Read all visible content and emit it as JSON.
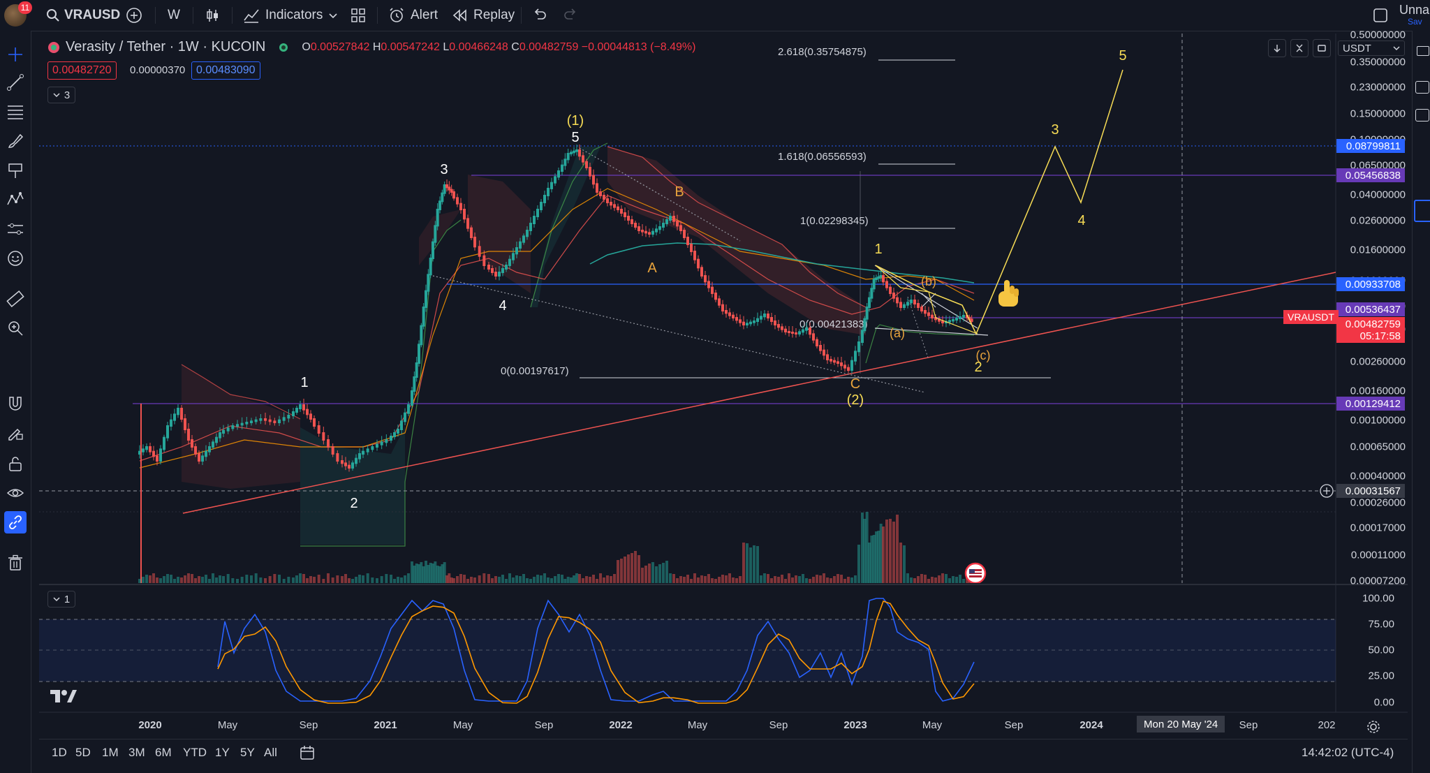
{
  "topbar": {
    "notification_count": "11",
    "symbol": "VRAUSD",
    "interval": "W",
    "indicators_label": "Indicators",
    "alert_label": "Alert",
    "replay_label": "Replay",
    "layout_name": "Unna",
    "save_hint": "Sav"
  },
  "legend": {
    "title": "Verasity / Tether · 1W · KUCOIN",
    "o_label": "O",
    "o_value": "0.00527842",
    "h_label": "H",
    "h_value": "0.00547242",
    "l_label": "L",
    "l_value": "0.00466248",
    "c_label": "C",
    "c_value": "0.00482759",
    "change": "−0.00044813 (−8.49%)",
    "sell_price": "0.00482720",
    "spread": "0.00000370",
    "buy_price": "0.00483090",
    "indicators_count": "3",
    "osc_count": "1"
  },
  "currency": "USDT",
  "price_scale": [
    "0.50000000",
    "0.35000000",
    "0.23000000",
    "0.15000000",
    "0.10000000",
    "0.06500000",
    "0.04000000",
    "0.02600000",
    "0.01600000",
    "0.01000000",
    "0.00650000",
    "0.00400000",
    "0.00260000",
    "0.00160000",
    "0.00100000",
    "0.00065000",
    "0.00040000",
    "0.00026000",
    "0.00017000",
    "0.00011000",
    "0.00007200"
  ],
  "price_tags": [
    {
      "value": "0.08799811",
      "color": "#2962ff"
    },
    {
      "value": "0.05456838",
      "color": "#673ab7"
    },
    {
      "value": "0.00933708",
      "color": "#2962ff"
    },
    {
      "value": "0.00536437",
      "color": "#673ab7"
    },
    {
      "value": "0.00482759",
      "color": "#f23645"
    },
    {
      "value": "05:17:58",
      "color": "#f23645"
    },
    {
      "value": "0.00129412",
      "color": "#673ab7"
    },
    {
      "value": "0.00031567",
      "color": "#363a45"
    }
  ],
  "symbol_tag": "VRAUSDT",
  "osc_scale": [
    "100.00",
    "75.00",
    "50.00",
    "25.00",
    "0.00"
  ],
  "fib_labels": {
    "f2618": "2.618(0.35754875)",
    "f1618": "1.618(0.06556593)",
    "f1": "1(0.02298345)",
    "f0a": "0(0.00421383)",
    "f0b": "0(0.00197617)"
  },
  "wave_labels": {
    "w1_top": "(1)",
    "w5": "5",
    "w3": "3",
    "w4": "4",
    "w1": "1",
    "w2": "2",
    "wB": "B",
    "wA": "A",
    "wC": "C",
    "w2p": "(2)",
    "n1": "1",
    "nb": "(b)",
    "na": "(a)",
    "nc": "(c)",
    "n2": "2",
    "p3": "3",
    "p4": "4",
    "p5": "5"
  },
  "time_axis": [
    "2020",
    "May",
    "Sep",
    "2021",
    "May",
    "Sep",
    "2022",
    "May",
    "Sep",
    "2023",
    "May",
    "Sep",
    "2024",
    "Sep",
    "202"
  ],
  "crosshair_date": "Mon 20 May '24",
  "ranges": [
    "1D",
    "5D",
    "1M",
    "3M",
    "6M",
    "YTD",
    "1Y",
    "5Y",
    "All"
  ],
  "clock": "14:42:02 (UTC-4)",
  "colors": {
    "up": "#26a69a",
    "down": "#ef5350",
    "bg": "#131722",
    "yellow": "#f7dc55",
    "orange": "#e8a33c",
    "stoch_k": "#2962ff",
    "stoch_d": "#ff9800"
  }
}
